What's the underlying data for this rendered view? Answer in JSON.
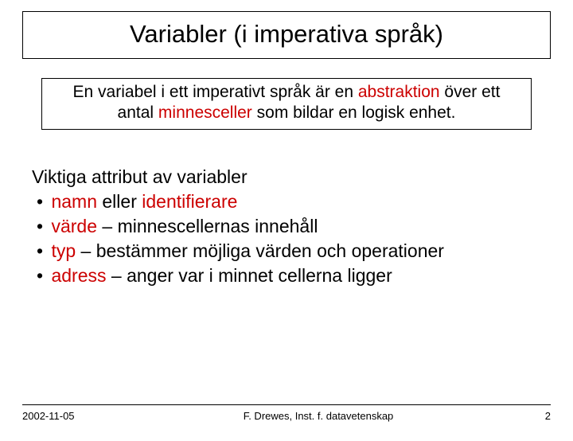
{
  "title": "Variabler (i imperativa språk)",
  "definition": {
    "prefix": "En variabel i ett imperativt språk är en ",
    "abstraction": "abstraktion",
    "mid": " över ett antal ",
    "cells": "minnesceller",
    "suffix": " som bildar en logisk enhet."
  },
  "attributes": {
    "heading": "Viktiga attribut av variabler",
    "items": [
      {
        "term": "namn",
        "connector": " eller ",
        "term2": "identifierare",
        "rest": ""
      },
      {
        "term": "värde",
        "rest": " – minnescellernas innehåll"
      },
      {
        "term": "typ",
        "rest": " – bestämmer möjliga värden och operationer"
      },
      {
        "term": "adress",
        "rest": " – anger var i minnet cellerna ligger"
      }
    ]
  },
  "footer": {
    "date": "2002-11-05",
    "author": "F. Drewes, Inst. f. datavetenskap",
    "page": "2"
  },
  "colors": {
    "highlight": "#cc0000",
    "text": "#000000",
    "background": "#ffffff",
    "border": "#000000"
  }
}
